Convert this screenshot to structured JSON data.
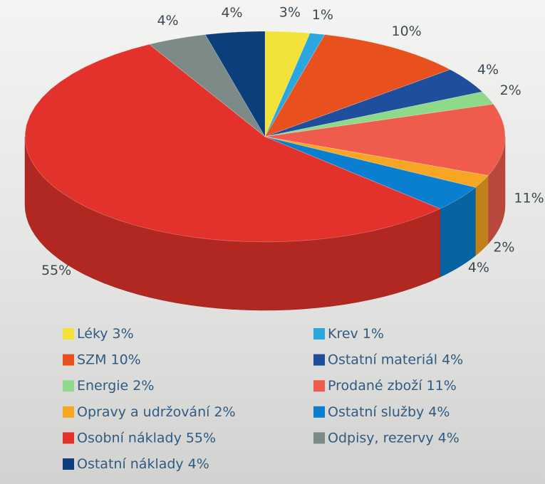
{
  "chart_data": {
    "type": "pie",
    "categories": [
      "Léky",
      "Krev",
      "SZM",
      "Ostatní materiál",
      "Energie",
      "Prodané zboží",
      "Opravy a udržování",
      "Ostatní služby",
      "Osobní náklady",
      "Odpisy, rezervy",
      "Ostatní náklady"
    ],
    "values": [
      3,
      1,
      10,
      4,
      2,
      11,
      2,
      4,
      55,
      4,
      4
    ],
    "value_labels": [
      "3%",
      "1%",
      "10%",
      "4%",
      "2%",
      "11%",
      "2%",
      "4%",
      "55%",
      "4%",
      "4%"
    ],
    "colors": [
      "#f3e23a",
      "#2aa7de",
      "#e8501e",
      "#1f4e9c",
      "#8fd98a",
      "#ef5b4c",
      "#f6a623",
      "#0a7fcf",
      "#e3322b",
      "#7d8b88",
      "#0d3e7c"
    ]
  }
}
